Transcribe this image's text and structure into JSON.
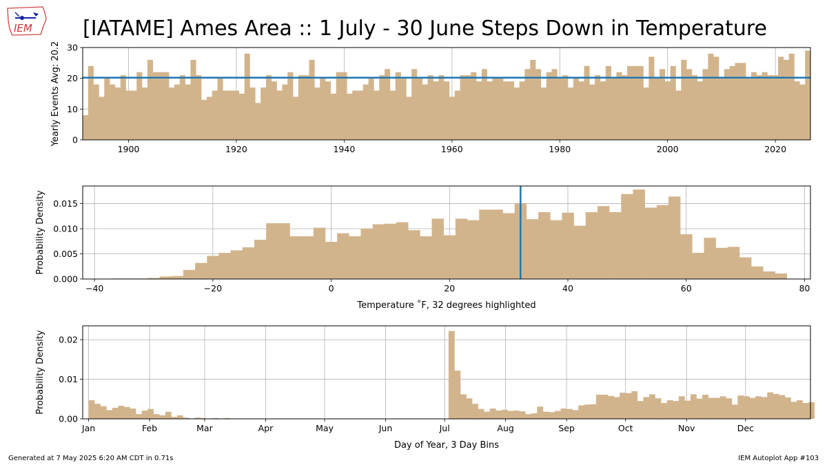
{
  "title": "[IATAME] Ames Area :: 1 July - 30 June Steps Down in Temperature",
  "logo_text": "IEM",
  "footer": {
    "left": "Generated at 7 May 2025 6:20 AM CDT in 0.71s",
    "right": "IEM Autoplot App #103"
  },
  "colors": {
    "bar": "#d2b48c",
    "line": "#1f77b4",
    "grid": "#b0b0b0"
  },
  "chart_data": [
    {
      "type": "bar",
      "ylabel": "Yearly Events Avg: 20.2",
      "xlabel": "",
      "average": 20.2,
      "xlim": [
        1891.5,
        2026.5
      ],
      "ylim": [
        0,
        30
      ],
      "xticks": [
        1900,
        1920,
        1940,
        1960,
        1980,
        2000,
        2020
      ],
      "yticks": [
        0,
        10,
        20,
        30
      ],
      "grid": true,
      "x_start": 1892,
      "values": [
        8,
        24,
        18,
        14,
        20,
        18,
        17,
        21,
        16,
        16,
        22,
        17,
        26,
        22,
        22,
        22,
        17,
        18,
        21,
        18,
        26,
        21,
        13,
        14,
        16,
        20,
        16,
        16,
        16,
        15,
        28,
        17,
        12,
        17,
        21,
        19,
        16,
        18,
        22,
        14,
        21,
        21,
        26,
        17,
        20,
        19,
        15,
        22,
        22,
        15,
        16,
        16,
        18,
        20,
        16,
        21,
        23,
        16,
        22,
        20,
        14,
        23,
        20,
        18,
        21,
        19,
        21,
        19,
        14,
        16,
        21,
        21,
        22,
        19,
        23,
        19,
        20,
        20,
        19,
        19,
        17,
        19,
        23,
        26,
        23,
        17,
        22,
        23,
        20,
        21,
        17,
        20,
        19,
        24,
        18,
        21,
        19,
        24,
        20,
        22,
        21,
        24,
        24,
        24,
        17,
        27,
        20,
        23,
        19,
        24,
        16,
        26,
        23,
        21,
        19,
        23,
        28,
        27,
        20,
        23,
        24,
        25,
        25,
        20,
        22,
        21,
        22,
        21,
        21,
        27,
        26,
        28,
        19,
        18,
        29
      ]
    },
    {
      "type": "bar",
      "ylabel": "Probability Density",
      "xlabel": "Temperature $^\\circ$F, 32 degrees highlighted",
      "highlight": 32,
      "xlim": [
        -42,
        81
      ],
      "ylim": [
        0,
        0.0185
      ],
      "xticks": [
        -40,
        -20,
        0,
        20,
        40,
        60,
        80
      ],
      "yticks": [
        0,
        0.005,
        0.01,
        0.015
      ],
      "ytick_labels": [
        "0.000",
        "0.005",
        "0.010",
        "0.015"
      ],
      "grid": true,
      "bin_start": -37,
      "bin_width": 2,
      "values": [
        0.0001,
        0.0001,
        0.0001,
        0.0002,
        0.0005,
        0.0006,
        0.0018,
        0.0032,
        0.0046,
        0.0052,
        0.0057,
        0.0063,
        0.0078,
        0.0111,
        0.0111,
        0.0085,
        0.0085,
        0.0102,
        0.0074,
        0.0091,
        0.0085,
        0.01,
        0.0109,
        0.011,
        0.0113,
        0.0097,
        0.0085,
        0.012,
        0.0087,
        0.012,
        0.0117,
        0.0138,
        0.0138,
        0.0131,
        0.0151,
        0.0119,
        0.0133,
        0.0117,
        0.0132,
        0.0106,
        0.0133,
        0.0145,
        0.0133,
        0.0169,
        0.0178,
        0.0142,
        0.0147,
        0.0164,
        0.0089,
        0.0052,
        0.0082,
        0.0062,
        0.0064,
        0.0043,
        0.0025,
        0.0015,
        0.0011
      ]
    },
    {
      "type": "bar",
      "ylabel": "Probability Density",
      "xlabel": "Day of Year, 3 Day Bins",
      "xlim": [
        -2,
        368
      ],
      "ylim": [
        0,
        0.0235
      ],
      "xtick_positions": [
        1,
        32,
        60,
        91,
        121,
        152,
        182,
        213,
        244,
        274,
        305,
        335
      ],
      "xtick_labels": [
        "Jan",
        "Feb",
        "Mar",
        "Apr",
        "May",
        "Jun",
        "Jul",
        "Aug",
        "Sep",
        "Oct",
        "Nov",
        "Dec"
      ],
      "yticks": [
        0,
        0.01,
        0.02
      ],
      "ytick_labels": [
        "0.00",
        "0.01",
        "0.02"
      ],
      "grid": true,
      "bin_start": 1,
      "bin_width": 3,
      "values": [
        0.0047,
        0.0038,
        0.0032,
        0.0022,
        0.0028,
        0.0033,
        0.003,
        0.0026,
        0.0012,
        0.0021,
        0.0025,
        0.0012,
        0.0009,
        0.0018,
        0.0005,
        0.0009,
        0.0003,
        0,
        0.0003,
        0.0002,
        0,
        0.0002,
        0,
        0.0002,
        0,
        0,
        0,
        0,
        0,
        0,
        0,
        0,
        0,
        0,
        0,
        0,
        0,
        0,
        0,
        0,
        0,
        0,
        0,
        0,
        0,
        0,
        0,
        0,
        0,
        0,
        0,
        0,
        0,
        0,
        0,
        0,
        0,
        0,
        0,
        0,
        0,
        0.0222,
        0.0122,
        0.0062,
        0.0052,
        0.0038,
        0.0025,
        0.0018,
        0.0026,
        0.0021,
        0.0023,
        0.002,
        0.0021,
        0.0019,
        0.0012,
        0.0014,
        0.0031,
        0.0018,
        0.0017,
        0.002,
        0.0026,
        0.0025,
        0.0022,
        0.0034,
        0.0036,
        0.0037,
        0.0061,
        0.0061,
        0.0058,
        0.0055,
        0.0066,
        0.0065,
        0.007,
        0.0045,
        0.0055,
        0.0062,
        0.0052,
        0.004,
        0.0047,
        0.0045,
        0.0057,
        0.0046,
        0.0062,
        0.0051,
        0.0061,
        0.0053,
        0.0053,
        0.0057,
        0.0052,
        0.0036,
        0.0059,
        0.0057,
        0.0053,
        0.0057,
        0.0055,
        0.0067,
        0.0063,
        0.006,
        0.0054,
        0.0043,
        0.0047,
        0.004,
        0.0042
      ]
    }
  ]
}
